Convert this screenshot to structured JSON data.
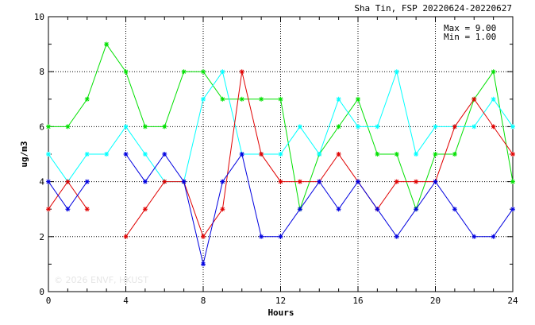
{
  "chart_data": {
    "type": "line",
    "title": "Sha Tin, FSP 20220624-20220627",
    "xlabel": "Hours",
    "ylabel": "ug/m3",
    "xlim": [
      0,
      24
    ],
    "ylim": [
      0,
      10
    ],
    "x_ticks": [
      0,
      4,
      8,
      12,
      16,
      20,
      24
    ],
    "y_ticks": [
      0,
      2,
      4,
      6,
      8,
      10
    ],
    "grid": true,
    "stats": {
      "max_label": "Max = 9.00",
      "min_label": "Min = 1.00"
    },
    "watermark": "© 2026  ENVF, HKUST",
    "x": [
      0,
      1,
      2,
      3,
      4,
      5,
      6,
      7,
      8,
      9,
      10,
      11,
      12,
      13,
      14,
      15,
      16,
      17,
      18,
      19,
      20,
      21,
      22,
      23,
      24
    ],
    "series": [
      {
        "color": "#00e000",
        "values": [
          6,
          6,
          7,
          9,
          8,
          6,
          6,
          8,
          8,
          7,
          7,
          7,
          7,
          3,
          5,
          6,
          7,
          5,
          5,
          3,
          5,
          5,
          7,
          8,
          4
        ]
      },
      {
        "color": "#00ffff",
        "values": [
          5,
          4,
          5,
          5,
          6,
          5,
          4,
          4,
          7,
          8,
          5,
          5,
          5,
          6,
          5,
          7,
          6,
          6,
          8,
          5,
          6,
          6,
          6,
          7,
          6
        ]
      },
      {
        "color": "#e00000",
        "values": [
          3,
          4,
          3,
          null,
          2,
          3,
          4,
          4,
          2,
          3,
          8,
          5,
          4,
          4,
          4,
          5,
          4,
          3,
          4,
          4,
          4,
          6,
          7,
          6,
          5
        ]
      },
      {
        "color": "#0000e0",
        "values": [
          4,
          3,
          4,
          null,
          5,
          4,
          5,
          4,
          1,
          4,
          5,
          2,
          2,
          3,
          4,
          3,
          4,
          3,
          2,
          3,
          4,
          3,
          2,
          2,
          3
        ]
      }
    ]
  }
}
